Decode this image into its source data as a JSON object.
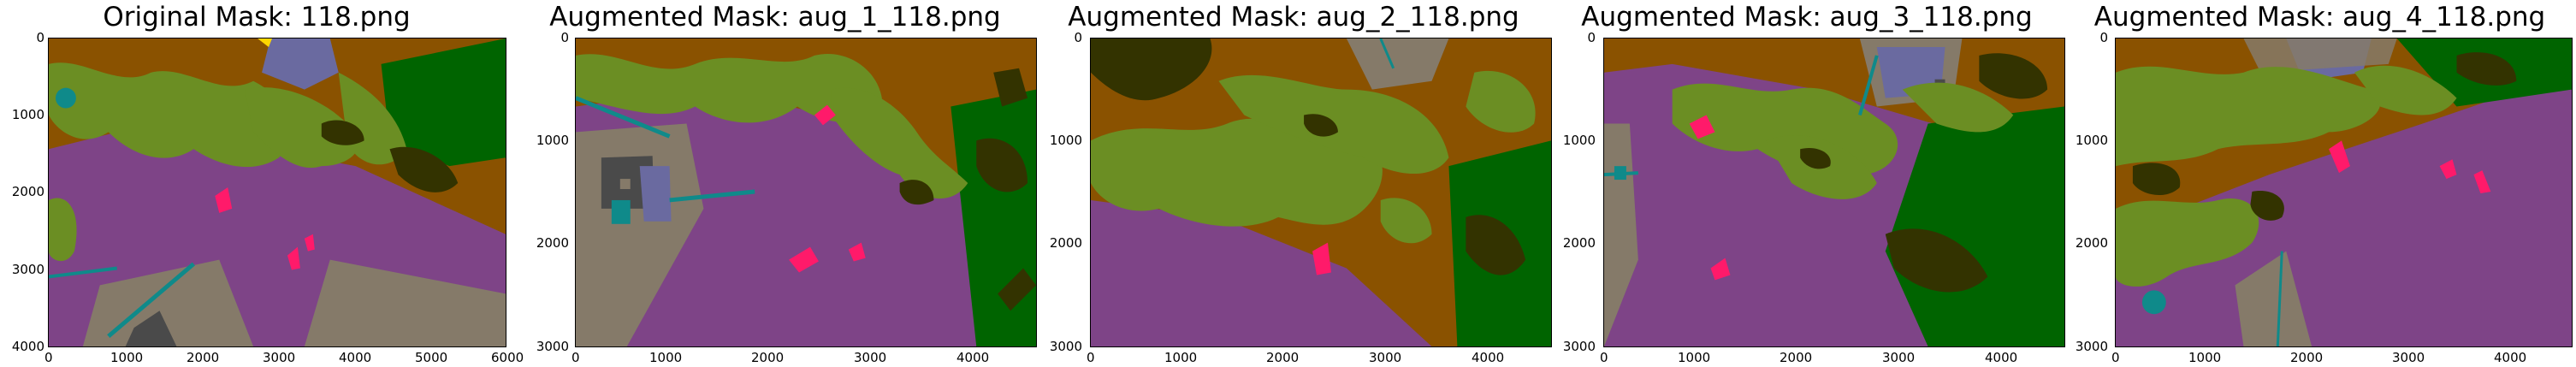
{
  "panels": [
    {
      "title": "Original Mask: 118.png",
      "xticks": [
        "0",
        "1000",
        "2000",
        "3000",
        "4000",
        "5000",
        "6000"
      ],
      "yticks": [
        "0",
        "1000",
        "2000",
        "3000",
        "4000"
      ]
    },
    {
      "title": "Augmented Mask: aug_1_118.png",
      "xticks": [
        "0",
        "1000",
        "2000",
        "3000",
        "4000"
      ],
      "yticks": [
        "0",
        "1000",
        "2000",
        "3000"
      ]
    },
    {
      "title": "Augmented Mask: aug_2_118.png",
      "xticks": [
        "0",
        "1000",
        "2000",
        "3000",
        "4000"
      ],
      "yticks": [
        "0",
        "1000",
        "2000",
        "3000"
      ]
    },
    {
      "title": "Augmented Mask: aug_3_118.png",
      "xticks": [
        "0",
        "1000",
        "2000",
        "3000",
        "4000"
      ],
      "yticks": [
        "0",
        "1000",
        "2000",
        "3000"
      ]
    },
    {
      "title": "Augmented Mask: aug_4_118.png",
      "xticks": [
        "0",
        "1000",
        "2000",
        "3000",
        "4000"
      ],
      "yticks": [
        "0",
        "1000",
        "2000",
        "3000"
      ]
    }
  ],
  "colors": {
    "road": "#7e4487",
    "vegetation": "#6b8e23",
    "soil": "#8a5200",
    "dark_tree": "#333300",
    "forest": "#006400",
    "pavement": "#857a69",
    "person": "#ff1a6a",
    "pole": "#0f8a8a",
    "roof": "#6a6aa0",
    "wall": "#4a4a4a",
    "sign": "#ffd700"
  }
}
